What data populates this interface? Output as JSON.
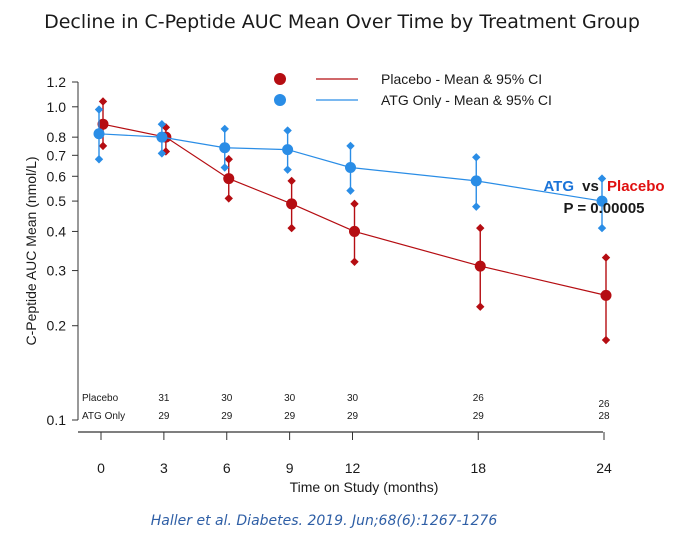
{
  "chart_data": {
    "type": "line",
    "title": "Decline in C-Peptide AUC Mean Over Time by Treatment Group",
    "xlabel": "Time on Study (months)",
    "ylabel": "C-Peptide AUC Mean (nmol/L)",
    "y_scale": "log",
    "ylim": [
      0.1,
      1.2
    ],
    "y_ticks": [
      "0.1",
      "0.2",
      "0.3",
      "0.4",
      "0.5",
      "0.6",
      "0.7",
      "0.8",
      "1.0",
      "1.2"
    ],
    "x": [
      0,
      3,
      6,
      9,
      12,
      18,
      24
    ],
    "x_ticks": [
      "0",
      "3",
      "6",
      "9",
      "12",
      "18",
      "24"
    ],
    "series": [
      {
        "name": "Placebo - Mean & 95% CI",
        "color": "#b50d12",
        "mean": [
          0.88,
          0.8,
          0.59,
          0.49,
          0.4,
          0.31,
          0.25
        ],
        "ci_low": [
          0.75,
          0.72,
          0.51,
          0.41,
          0.32,
          0.23,
          0.18
        ],
        "ci_high": [
          1.04,
          0.86,
          0.68,
          0.58,
          0.49,
          0.41,
          0.33
        ]
      },
      {
        "name": "ATG Only - Mean & 95% CI",
        "color": "#2a8de6",
        "mean": [
          0.82,
          0.8,
          0.74,
          0.73,
          0.64,
          0.58,
          0.5
        ],
        "ci_low": [
          0.68,
          0.71,
          0.64,
          0.63,
          0.54,
          0.48,
          0.41
        ],
        "ci_high": [
          0.98,
          0.88,
          0.85,
          0.84,
          0.75,
          0.69,
          0.59
        ]
      }
    ],
    "at_risk": {
      "rows": [
        {
          "label": "Placebo",
          "values": [
            "",
            "31",
            "30",
            "30",
            "30",
            "26",
            "26"
          ]
        },
        {
          "label": "ATG Only",
          "values": [
            "",
            "29",
            "29",
            "29",
            "29",
            "29",
            "28"
          ]
        }
      ]
    },
    "annotation": {
      "atg": "ATG",
      "vs": "vs",
      "placebo": "Placebo",
      "p_value": "P = 0.00005"
    },
    "grid": false,
    "legend_position": "top"
  },
  "citation": "Haller et al. Diabetes. 2019. Jun;68(6):1267-1276"
}
